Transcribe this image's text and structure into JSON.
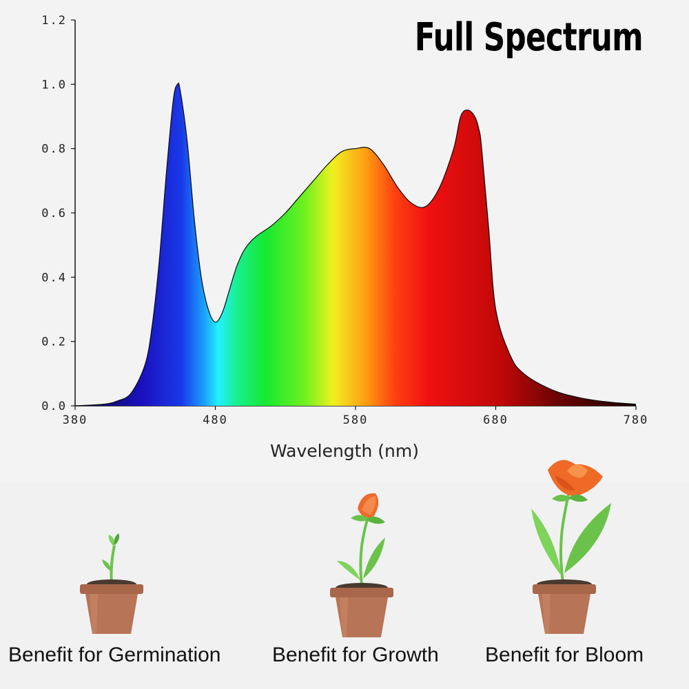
{
  "chart_data": {
    "type": "area",
    "title": "Full Spectrum",
    "xlabel": "Wavelength (nm)",
    "ylabel": "",
    "xlim": [
      380,
      780
    ],
    "ylim": [
      0,
      1.2
    ],
    "xticks": [
      "380",
      "480",
      "580",
      "680",
      "780"
    ],
    "yticks": [
      "0.0",
      "0.2",
      "0.4",
      "0.6",
      "0.8",
      "1.0",
      "1.2"
    ],
    "grid": false,
    "series": [
      {
        "x": [
          380,
          400,
          410,
          420,
          430,
          435,
          440,
          445,
          450,
          453,
          455,
          460,
          465,
          470,
          475,
          480,
          485,
          490,
          495,
          500,
          505,
          510,
          520,
          530,
          540,
          550,
          560,
          570,
          580,
          590,
          600,
          610,
          620,
          630,
          640,
          650,
          655,
          660,
          665,
          668,
          670,
          675,
          680,
          690,
          700,
          720,
          740,
          760,
          780
        ],
        "values": [
          0.0,
          0.005,
          0.015,
          0.04,
          0.13,
          0.25,
          0.45,
          0.72,
          0.95,
          1.0,
          0.98,
          0.82,
          0.58,
          0.4,
          0.3,
          0.26,
          0.29,
          0.36,
          0.43,
          0.48,
          0.51,
          0.53,
          0.56,
          0.6,
          0.65,
          0.7,
          0.75,
          0.79,
          0.8,
          0.8,
          0.75,
          0.68,
          0.63,
          0.62,
          0.68,
          0.8,
          0.9,
          0.92,
          0.9,
          0.86,
          0.8,
          0.55,
          0.3,
          0.16,
          0.1,
          0.05,
          0.025,
          0.012,
          0.005
        ]
      }
    ]
  },
  "benefits": {
    "germination": "Benefit for Germination",
    "growth": "Benefit for Growth",
    "bloom": "Benefit for Bloom"
  }
}
